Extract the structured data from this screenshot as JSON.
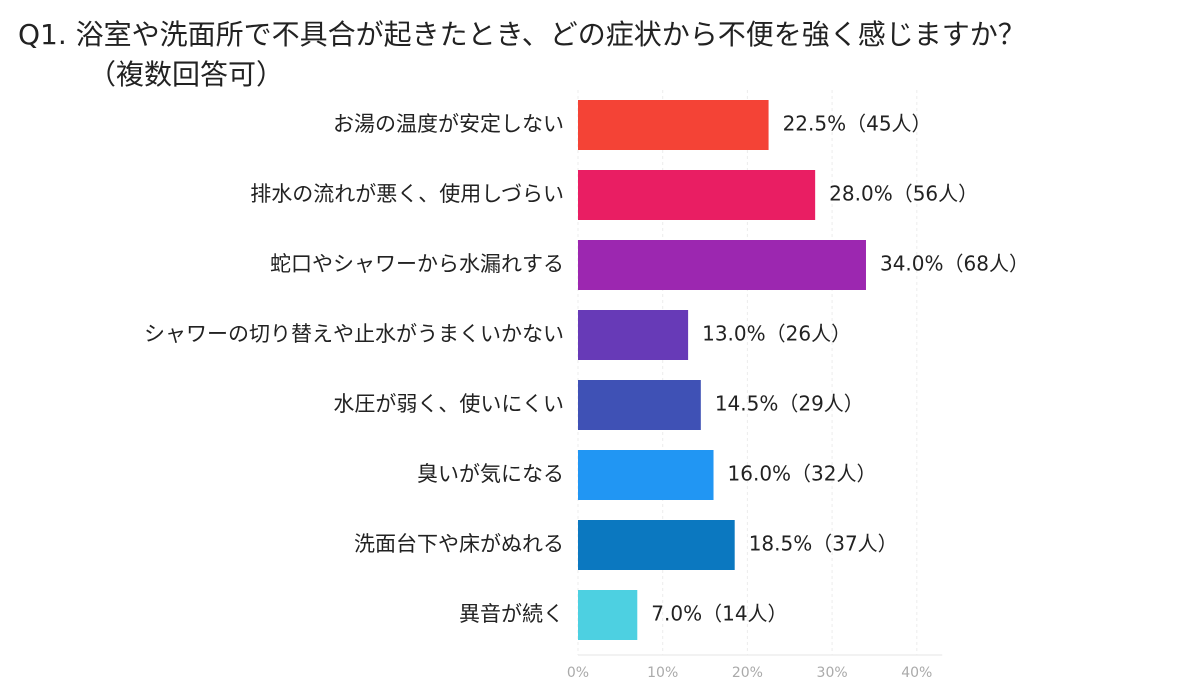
{
  "chart_data": {
    "type": "bar",
    "orientation": "horizontal",
    "title": "Q1. 浴室や洗面所で不具合が起きたとき、どの症状から不便を強く感じますか？",
    "subtitle": "（複数回答可）",
    "categories": [
      "お湯の温度が安定しない",
      "排水の流れが悪く、使用しづらい",
      "蛇口やシャワーから水漏れする",
      "シャワーの切り替えや止水がうまくいかない",
      "水圧が弱く、使いにくい",
      "臭いが気になる",
      "洗面台下や床がぬれる",
      "異音が続く"
    ],
    "values": [
      22.5,
      28.0,
      34.0,
      13.0,
      14.5,
      16.0,
      18.5,
      7.0
    ],
    "value_labels": [
      "22.5%（45人）",
      "28.0%（56人）",
      "34.0%（68人）",
      "13.0%（26人）",
      "14.5%（29人）",
      "16.0%（32人）",
      "18.5%（37人）",
      "7.0%（14人）"
    ],
    "colors": [
      "#f44336",
      "#e91e63",
      "#9c27b0",
      "#673ab7",
      "#3f51b5",
      "#2196f3",
      "#0b78c0",
      "#4dd0e1"
    ],
    "xlim": [
      0,
      43
    ],
    "xticks": [
      {
        "value": 0,
        "label": "0%"
      },
      {
        "value": 10,
        "label": "10%"
      },
      {
        "value": 20,
        "label": "20%"
      },
      {
        "value": 30,
        "label": "30%"
      },
      {
        "value": 40,
        "label": "40%"
      }
    ],
    "grid": true
  }
}
